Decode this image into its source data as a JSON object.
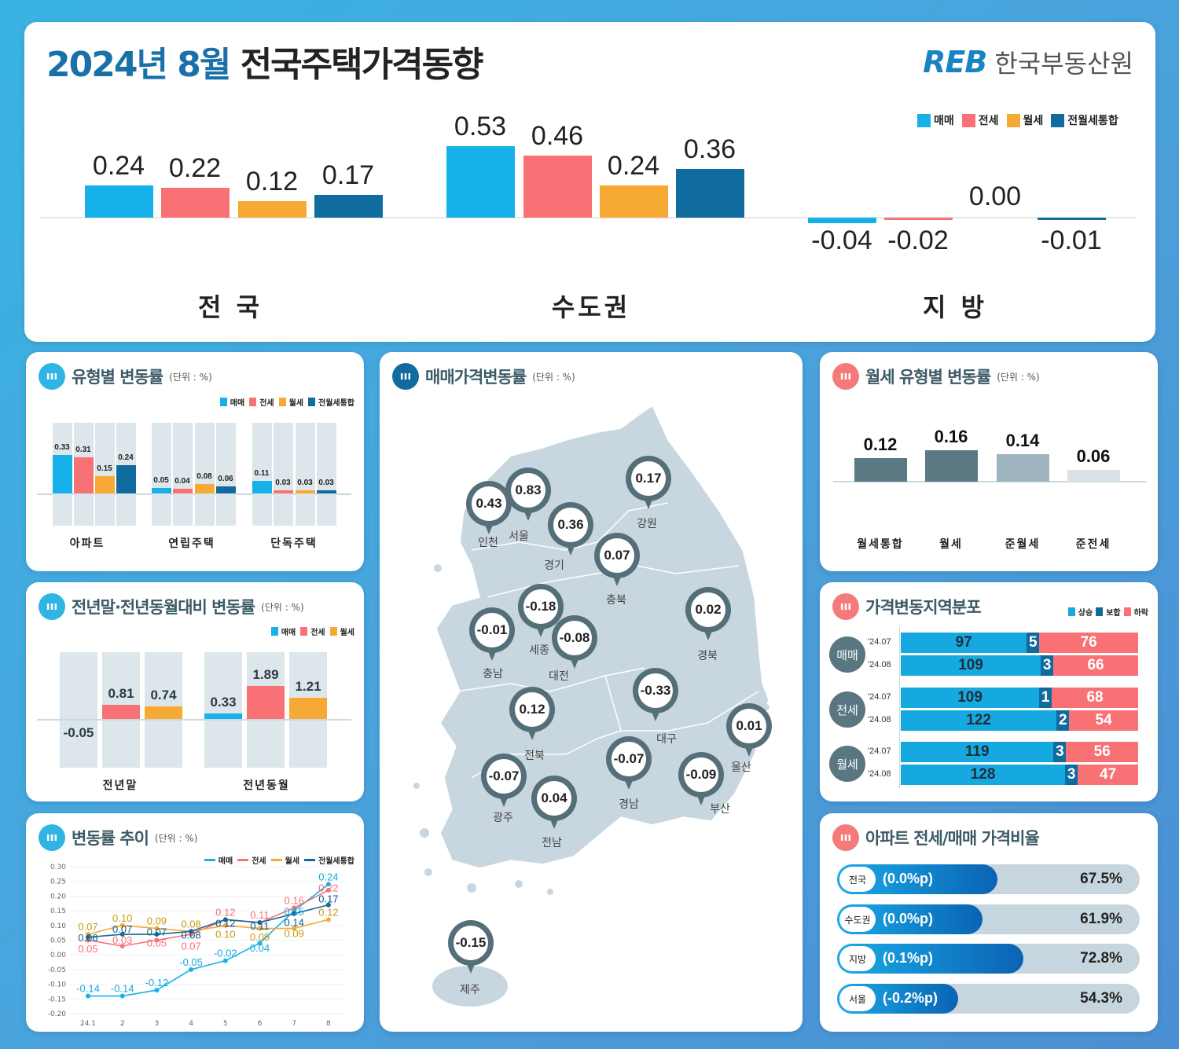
{
  "header": {
    "year_month": "2024년 8월",
    "title": "전국주택가격동향",
    "logo_mark": "REB",
    "logo_name": "한국부동산원"
  },
  "colors": {
    "매매": "#16b1e8",
    "전세": "#f87175",
    "월세": "#f6a934",
    "전월세통합": "#106b9e",
    "icon_blue": "#30b4e4",
    "icon_red": "#f57a7a"
  },
  "legend_main": [
    "매매",
    "전세",
    "월세",
    "전월세통합"
  ],
  "top_chart": {
    "type": "bar",
    "series": [
      "매매",
      "전세",
      "월세",
      "전월세통합"
    ],
    "groups": [
      {
        "label": "전 국",
        "values": [
          0.24,
          0.22,
          0.12,
          0.17
        ]
      },
      {
        "label": "수도권",
        "values": [
          0.53,
          0.46,
          0.24,
          0.36
        ]
      },
      {
        "label": "지 방",
        "values": [
          -0.04,
          -0.02,
          0.0,
          -0.01
        ]
      }
    ]
  },
  "type_chart": {
    "title": "유형별 변동률",
    "unit": "(단위 : %)",
    "series": [
      "매매",
      "전세",
      "월세",
      "전월세통합"
    ],
    "groups": [
      {
        "label": "아파트",
        "values": [
          0.33,
          0.31,
          0.15,
          0.24
        ]
      },
      {
        "label": "연립주택",
        "values": [
          0.05,
          0.04,
          0.08,
          0.06
        ]
      },
      {
        "label": "단독주택",
        "values": [
          0.11,
          0.03,
          0.03,
          0.03
        ]
      }
    ]
  },
  "yoy_chart": {
    "title": "전년말·전년동월대비 변동률",
    "unit": "(단위 : %)",
    "series": [
      "매매",
      "전세",
      "월세"
    ],
    "groups": [
      {
        "label": "전년말",
        "values": [
          -0.05,
          0.81,
          0.74
        ]
      },
      {
        "label": "전년동월",
        "values": [
          0.33,
          1.89,
          1.21
        ]
      }
    ]
  },
  "trend_chart": {
    "title": "변동률 추이",
    "unit": "(단위 : %)",
    "type": "line",
    "x": [
      "24.1",
      "2",
      "3",
      "4",
      "5",
      "6",
      "7",
      "8"
    ],
    "y_ticks": [
      "0.30",
      "0.25",
      "0.20",
      "0.15",
      "0.10",
      "0.05",
      "0.00",
      "-0.05",
      "-0.10",
      "-0.15",
      "-0.20"
    ],
    "ylim": [
      -0.2,
      0.3
    ],
    "series": [
      {
        "name": "매매",
        "values": [
          -0.14,
          -0.14,
          -0.12,
          -0.05,
          -0.02,
          0.04,
          0.15,
          0.24
        ]
      },
      {
        "name": "전세",
        "values": [
          0.05,
          0.03,
          0.05,
          0.07,
          0.12,
          0.11,
          0.16,
          0.22
        ]
      },
      {
        "name": "월세",
        "values": [
          0.07,
          0.1,
          0.09,
          0.08,
          0.1,
          0.09,
          0.09,
          0.12
        ]
      },
      {
        "name": "전월세통합",
        "values": [
          0.06,
          0.07,
          0.07,
          0.08,
          0.12,
          0.11,
          0.14,
          0.17
        ]
      }
    ]
  },
  "map": {
    "title": "매매가격변동률",
    "unit": "(단위 : %)",
    "regions": [
      {
        "name": "인천",
        "value": "0.43"
      },
      {
        "name": "서울",
        "value": "0.83"
      },
      {
        "name": "경기",
        "value": "0.36"
      },
      {
        "name": "강원",
        "value": "0.17"
      },
      {
        "name": "충북",
        "value": "0.07"
      },
      {
        "name": "세종",
        "value": "-0.18"
      },
      {
        "name": "충남",
        "value": "-0.01"
      },
      {
        "name": "대전",
        "value": "-0.08"
      },
      {
        "name": "경북",
        "value": "0.02"
      },
      {
        "name": "대구",
        "value": "-0.33"
      },
      {
        "name": "전북",
        "value": "0.12"
      },
      {
        "name": "울산",
        "value": "0.01"
      },
      {
        "name": "경남",
        "value": "-0.07"
      },
      {
        "name": "부산",
        "value": "-0.09"
      },
      {
        "name": "광주",
        "value": "-0.07"
      },
      {
        "name": "전남",
        "value": "0.04"
      },
      {
        "name": "제주",
        "value": "-0.15"
      }
    ]
  },
  "rent_chart": {
    "title": "월세 유형별 변동률",
    "unit": "(단위 : %)",
    "categories": [
      "월세통합",
      "월세",
      "준월세",
      "준전세"
    ],
    "values": [
      0.12,
      0.16,
      0.14,
      0.06
    ],
    "colors": [
      "#5a7983",
      "#5a7983",
      "#9db3be",
      "#d8e2e8"
    ]
  },
  "dist_chart": {
    "title": "가격변동지역분포",
    "legend": [
      "상승",
      "보합",
      "하락"
    ],
    "colors": [
      "#16a9e0",
      "#0f6a9e",
      "#f87175"
    ],
    "groups": [
      {
        "label": "매매",
        "rows": [
          {
            "period": "'24.07",
            "values": [
              97,
              5,
              76
            ]
          },
          {
            "period": "'24.08",
            "values": [
              109,
              3,
              66
            ]
          }
        ]
      },
      {
        "label": "전세",
        "rows": [
          {
            "period": "'24.07",
            "values": [
              109,
              1,
              68
            ]
          },
          {
            "period": "'24.08",
            "values": [
              122,
              2,
              54
            ]
          }
        ]
      },
      {
        "label": "월세",
        "rows": [
          {
            "period": "'24.07",
            "values": [
              119,
              3,
              56
            ]
          },
          {
            "period": "'24.08",
            "values": [
              128,
              3,
              47
            ]
          }
        ]
      }
    ]
  },
  "ratio_chart": {
    "title": "아파트 전세/매매 가격비율",
    "rows": [
      {
        "region": "전국",
        "change": "(0.0%p)",
        "value": "67.5%",
        "pct": 67.5
      },
      {
        "region": "수도권",
        "change": "(0.0%p)",
        "value": "61.9%",
        "pct": 61.9
      },
      {
        "region": "지방",
        "change": "(0.1%p)",
        "value": "72.8%",
        "pct": 72.8
      },
      {
        "region": "서울",
        "change": "(-0.2%p)",
        "value": "54.3%",
        "pct": 54.3
      }
    ]
  }
}
